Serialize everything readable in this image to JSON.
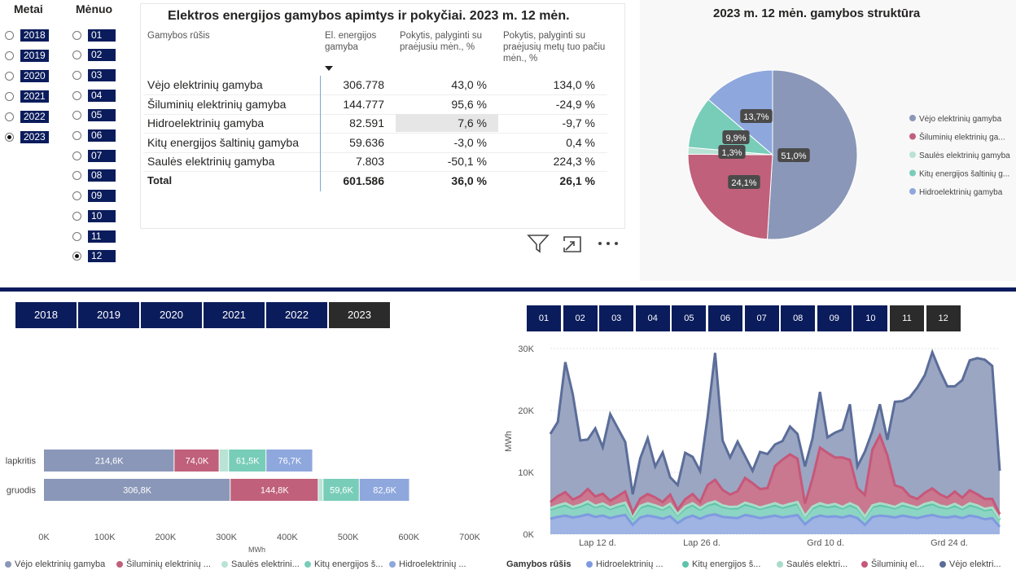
{
  "slicers": {
    "year_header": "Metai",
    "month_header": "Mėnuo",
    "years": [
      "2018",
      "2019",
      "2020",
      "2021",
      "2022",
      "2023"
    ],
    "selected_year": "2023",
    "months": [
      "01",
      "02",
      "03",
      "04",
      "05",
      "06",
      "07",
      "08",
      "09",
      "10",
      "11",
      "12"
    ],
    "selected_month": "12"
  },
  "table": {
    "title": "Elektros energijos gamybos apimtys ir pokyčiai. 2023 m. 12 mėn.",
    "headers": [
      "Gamybos rūšis",
      "El. energijos gamyba",
      "Pokytis, palyginti su praėjusiu mėn., %",
      "Pokytis, palyginti su praėjusių metų tuo pačiu mėn., %"
    ],
    "rows": [
      [
        "Vėjo elektrinių gamyba",
        "306.778",
        "43,0 %",
        "134,0 %"
      ],
      [
        "Šiluminių elektrinių gamyba",
        "144.777",
        "95,6 %",
        "-24,9 %"
      ],
      [
        "Hidroelektrinių gamyba",
        "82.591",
        "7,6 %",
        "-9,7 %"
      ],
      [
        "Kitų energijos šaltinių gamyba",
        "59.636",
        "-3,0 %",
        "0,4 %"
      ],
      [
        "Saulės elektrinių gamyba",
        "7.803",
        "-50,1 %",
        "224,3 %"
      ]
    ],
    "total": [
      "Total",
      "601.586",
      "36,0 %",
      "26,1 %"
    ],
    "icons": [
      "sort-desc-icon",
      "filter-icon",
      "focus-mode-icon",
      "more-options-icon"
    ]
  },
  "year_buttons": {
    "labels": [
      "2018",
      "2019",
      "2020",
      "2021",
      "2022",
      "2023"
    ],
    "selected": "2023"
  },
  "month_buttons": {
    "labels": [
      "01",
      "02",
      "03",
      "04",
      "05",
      "06",
      "07",
      "08",
      "09",
      "10",
      "11",
      "12"
    ],
    "selected": [
      "11",
      "12"
    ]
  },
  "colors": {
    "wind": "#8a97b8",
    "thermal": "#c0607b",
    "solar": "#b9e3d4",
    "other": "#78cdb8",
    "hydro": "#8ea7dd",
    "navy": "#0b1c5c"
  },
  "chart_data": [
    {
      "type": "pie",
      "title": "2023 m. 12 mėn. gamybos struktūra",
      "slices": [
        {
          "label": "Vėjo elektrinių gamyba",
          "value": 51.0,
          "display": "51,0%"
        },
        {
          "label": "Šiluminių elektrinių ga...",
          "value": 24.1,
          "display": "24,1%"
        },
        {
          "label": "Saulės elektrinių gamyba",
          "value": 1.3,
          "display": "1,3%"
        },
        {
          "label": "Kitų energijos šaltinių g...",
          "value": 9.9,
          "display": "9,9%"
        },
        {
          "label": "Hidroelektrinių gamyba",
          "value": 13.7,
          "display": "13,7%"
        }
      ]
    },
    {
      "type": "bar",
      "orientation": "horizontal-stacked",
      "categories": [
        "lapkritis",
        "gruodis"
      ],
      "xlabel": "MWh",
      "xticks": [
        "0K",
        "100K",
        "200K",
        "300K",
        "400K",
        "500K",
        "600K",
        "700K"
      ],
      "xlim": [
        0,
        700000
      ],
      "series": [
        {
          "name": "Vėjo elektrinių gamyba",
          "values": [
            214600,
            306800
          ],
          "labels": [
            "214,6K",
            "306,8K"
          ]
        },
        {
          "name": "Šiluminių elektrinių ...",
          "values": [
            74000,
            144800
          ],
          "labels": [
            "74,0K",
            "144,8K"
          ]
        },
        {
          "name": "Saulės elektrini...",
          "values": [
            15600,
            7800
          ],
          "labels": [
            "",
            ""
          ]
        },
        {
          "name": "Kitų energijos š...",
          "values": [
            61500,
            59600
          ],
          "labels": [
            "61,5K",
            "59,6K"
          ]
        },
        {
          "name": "Hidroelektrinių ...",
          "values": [
            76700,
            82600
          ],
          "labels": [
            "76,7K",
            "82,6K"
          ]
        }
      ]
    },
    {
      "type": "area",
      "stacked": true,
      "ylabel": "MWh",
      "yticks": [
        "0K",
        "10K",
        "20K",
        "30K"
      ],
      "ylim": [
        0,
        30000
      ],
      "xticks": [
        "Lap 12 d.",
        "Lap 26 d.",
        "Grd 10 d.",
        "Grd 24 d."
      ],
      "legend_title": "Gamybos rūšis",
      "series": [
        {
          "name": "Hidroelektrinių ...",
          "values": [
            2500,
            2800,
            3000,
            2700,
            2900,
            3200,
            2800,
            3000,
            2600,
            2900,
            3100,
            1500,
            2700,
            3000,
            2800,
            2500,
            2900,
            1800,
            2600,
            3000,
            2500,
            3000,
            3200,
            2800,
            2700,
            2600,
            3100,
            2900,
            2600,
            2800,
            3000,
            2700,
            2900,
            3100,
            1600,
            2600,
            3000,
            2800,
            2900,
            2700,
            3000,
            2600,
            1500,
            2800,
            3000,
            2900,
            2700,
            3000,
            2800,
            2600,
            2900,
            3100,
            2800,
            2700,
            2900,
            2600,
            3000,
            2800,
            2400,
            2600,
            1200
          ]
        },
        {
          "name": "Kitų energijos š...",
          "values": [
            1500,
            1600,
            1700,
            1500,
            1600,
            1800,
            1600,
            1700,
            1500,
            1600,
            1700,
            1200,
            1600,
            1700,
            1600,
            1500,
            1700,
            1300,
            1600,
            1700,
            1500,
            1700,
            1800,
            1600,
            1500,
            1600,
            1700,
            1600,
            1500,
            1600,
            1700,
            1600,
            1700,
            1800,
            1200,
            1600,
            1700,
            1600,
            1700,
            1500,
            1700,
            1600,
            1200,
            1600,
            1700,
            1600,
            1500,
            1700,
            1600,
            1500,
            1700,
            1800,
            1600,
            1500,
            1700,
            1500,
            1700,
            1600,
            1500,
            1500,
            1100
          ]
        },
        {
          "name": "Saulės elektri...",
          "values": [
            200,
            250,
            300,
            200,
            250,
            300,
            200,
            250,
            200,
            250,
            300,
            150,
            250,
            300,
            250,
            200,
            300,
            150,
            250,
            300,
            200,
            250,
            300,
            250,
            200,
            250,
            300,
            250,
            200,
            250,
            300,
            250,
            300,
            300,
            150,
            250,
            300,
            250,
            300,
            200,
            300,
            250,
            150,
            250,
            300,
            250,
            200,
            300,
            250,
            200,
            300,
            300,
            250,
            200,
            300,
            200,
            300,
            250,
            200,
            200,
            150
          ]
        },
        {
          "name": "Šiluminių el...",
          "values": [
            1000,
            1500,
            1800,
            1200,
            1400,
            2000,
            1500,
            1600,
            1100,
            1400,
            1800,
            600,
            1200,
            1500,
            1300,
            1000,
            1500,
            700,
            1200,
            1500,
            1000,
            3000,
            3500,
            2500,
            2000,
            2500,
            4000,
            3500,
            3000,
            2800,
            6000,
            7500,
            8000,
            7000,
            2000,
            4500,
            9000,
            8500,
            7500,
            8000,
            7000,
            3000,
            3500,
            9000,
            11000,
            8000,
            3500,
            2500,
            1500,
            1400,
            1800,
            2200,
            1800,
            1500,
            2000,
            1600,
            2100,
            1800,
            1600,
            1400,
            800
          ]
        },
        {
          "name": "Vėjo elektri...",
          "values": [
            11000,
            12000,
            21000,
            17000,
            9000,
            8000,
            11000,
            7500,
            14000,
            11000,
            8000,
            3000,
            6500,
            9000,
            5000,
            8000,
            2800,
            4000,
            7500,
            6000,
            5000,
            11000,
            20500,
            8000,
            6000,
            8000,
            3500,
            2000,
            6000,
            5500,
            3500,
            3000,
            4500,
            4000,
            6000,
            6500,
            9000,
            2500,
            4000,
            4500,
            9000,
            3500,
            7000,
            3000,
            5000,
            2500,
            13500,
            14000,
            16000,
            18000,
            19000,
            22000,
            20000,
            18000,
            17000,
            19000,
            21000,
            22000,
            22500,
            21500,
            7000
          ]
        }
      ]
    }
  ],
  "pie_legend": [
    "Vėjo elektrinių gamyba",
    "Šiluminių elektrinių ga...",
    "Saulės elektrinių gamyba",
    "Kitų energijos šaltinių g...",
    "Hidroelektrinių gamyba"
  ],
  "bar_legend": [
    "Vėjo elektrinių gamyba",
    "Šiluminių elektrinių ...",
    "Saulės elektrini...",
    "Kitų energijos š...",
    "Hidroelektrinių ..."
  ],
  "area_legend": [
    "Hidroelektrinių ...",
    "Kitų energijos š...",
    "Saulės elektri...",
    "Šiluminių el...",
    "Vėjo elektri..."
  ]
}
